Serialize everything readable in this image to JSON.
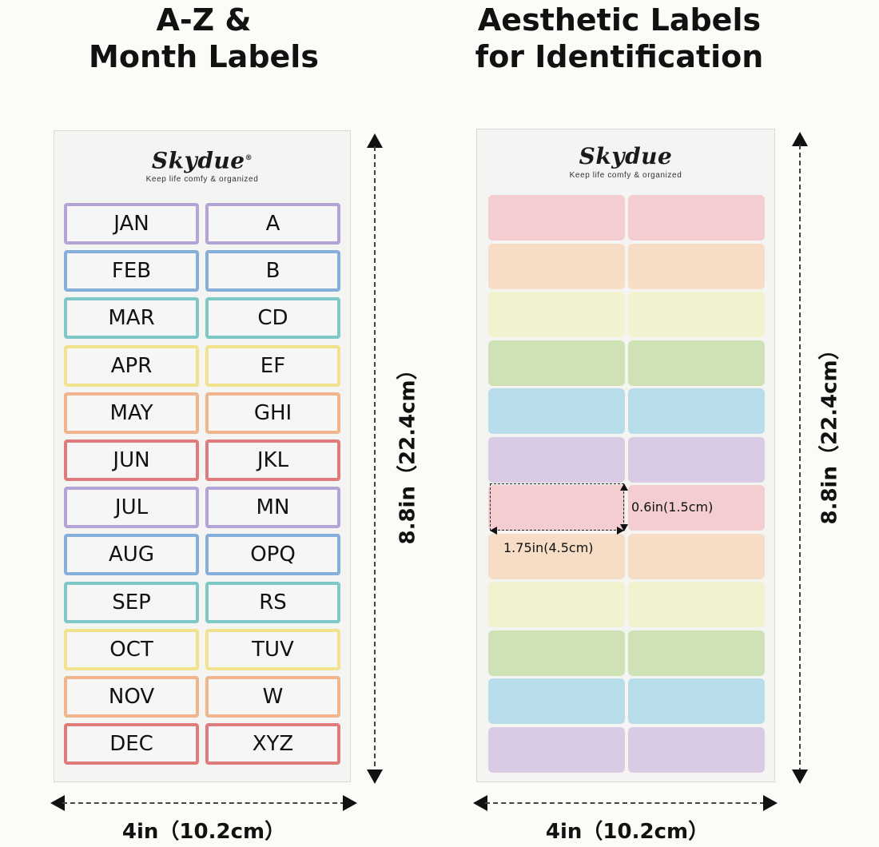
{
  "left_panel": {
    "title_line1": "A-Z &",
    "title_line2": "Month Labels",
    "brand": "Skydue",
    "trademark": "®",
    "tagline": "Keep life comfy & organized",
    "height_label": "8.8in（22.4cm）",
    "width_label": "4in（10.2cm）",
    "rows": [
      {
        "month": "JAN",
        "letters": "A",
        "color": "#b3a3d6"
      },
      {
        "month": "FEB",
        "letters": "B",
        "color": "#86aedb"
      },
      {
        "month": "MAR",
        "letters": "CD",
        "color": "#7fc8c8"
      },
      {
        "month": "APR",
        "letters": "EF",
        "color": "#f1e38e"
      },
      {
        "month": "MAY",
        "letters": "GHI",
        "color": "#f0b58c"
      },
      {
        "month": "JUN",
        "letters": "JKL",
        "color": "#e07b7b"
      },
      {
        "month": "JUL",
        "letters": "MN",
        "color": "#b3a3d6"
      },
      {
        "month": "AUG",
        "letters": "OPQ",
        "color": "#86aedb"
      },
      {
        "month": "SEP",
        "letters": "RS",
        "color": "#7fc8c8"
      },
      {
        "month": "OCT",
        "letters": "TUV",
        "color": "#f1e38e"
      },
      {
        "month": "NOV",
        "letters": "W",
        "color": "#f0b58c"
      },
      {
        "month": "DEC",
        "letters": "XYZ",
        "color": "#e07b7b"
      }
    ]
  },
  "right_panel": {
    "title_line1": "Aesthetic Labels",
    "title_line2": "for Identification",
    "brand": "Skydue",
    "tagline": "Keep life comfy & organized",
    "height_label": "8.8in（22.4cm）",
    "width_label": "4in（10.2cm）",
    "label_height": "0.6in(1.5cm)",
    "label_width": "1.75in(4.5cm)",
    "row_colors": [
      "#f3cdd0",
      "#f7dcc6",
      "#f3f2cf",
      "#cfe2b6",
      "#b7dcea",
      "#d9cbe4",
      "#f3cdd0",
      "#f7dcc6",
      "#f3f2cf",
      "#cfe2b6",
      "#b7dcea",
      "#d9cbe4"
    ]
  }
}
